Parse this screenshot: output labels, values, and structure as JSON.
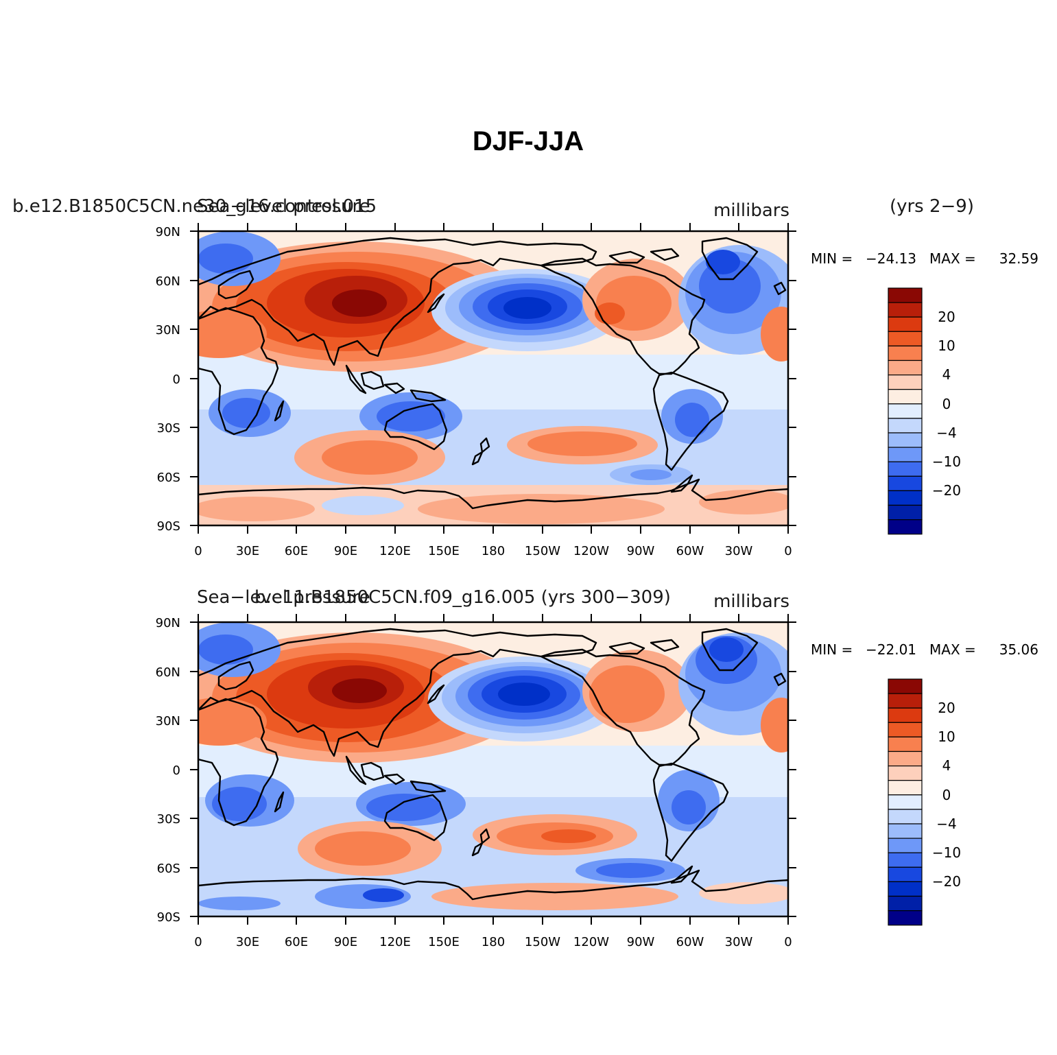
{
  "figure_title": "DJF-JJA",
  "colors": {
    "levels": [
      "#000088",
      "#0020a8",
      "#0030c8",
      "#1848e0",
      "#3e6cf0",
      "#6e98f8",
      "#9cbcfb",
      "#c4d8fc",
      "#e2eefe",
      "#fdeee2",
      "#fdd0bc",
      "#fbaa88",
      "#f8804f",
      "#ed5a25",
      "#dc3a10",
      "#b81f0a",
      "#8a0804"
    ],
    "coast": "#000000"
  },
  "colorbar_labels": [
    "20",
    "10",
    "4",
    "0",
    "−4",
    "−10",
    "−20"
  ],
  "x_ticks": [
    "0",
    "30E",
    "60E",
    "90E",
    "120E",
    "150E",
    "180",
    "150W",
    "120W",
    "90W",
    "60W",
    "30W",
    "0"
  ],
  "y_ticks": [
    "90N",
    "60N",
    "30N",
    "0",
    "30S",
    "60S",
    "90S"
  ],
  "panels": [
    {
      "left_label": "b.e12.B1850C5CN.ne30_g16.control.015",
      "overlap_label": "Sea−level pressure",
      "units": "millibars",
      "years": "(yrs 2−9)",
      "min_label": "MIN =",
      "min_value": "−24.13",
      "max_label": "MAX =",
      "max_value": "32.59"
    },
    {
      "left_label": "Sea−level pressure",
      "overlap_label": "b.e11.B1850C5CN.f09_g16.005 (yrs 300−309)",
      "units": "millibars",
      "years": "",
      "min_label": "MIN =",
      "min_value": "−22.01",
      "max_label": "MAX =",
      "max_value": "35.06"
    }
  ]
}
